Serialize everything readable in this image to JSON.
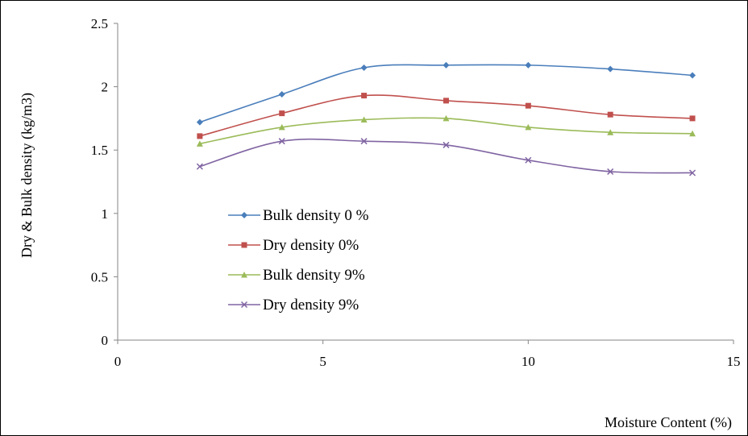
{
  "chart_data": {
    "type": "line",
    "title": "",
    "xlabel": "Moisture Content (%)",
    "ylabel": "Dry  & Bulk density (kg/m3)",
    "xlim": [
      0,
      15
    ],
    "ylim": [
      0,
      2.5
    ],
    "x_ticks": [
      "0",
      "5",
      "10",
      "15"
    ],
    "y_ticks": [
      "0",
      "0.5",
      "1",
      "1.5",
      "2",
      "2.5"
    ],
    "grid": false,
    "legend_position": "center-left",
    "smooth": true,
    "x": [
      2,
      4,
      6,
      8,
      10,
      12,
      14
    ],
    "series": [
      {
        "name": "Bulk density 0 %",
        "color": "#4a7ebb",
        "marker": "diamond",
        "values": [
          1.72,
          1.94,
          2.15,
          2.17,
          2.17,
          2.14,
          2.09
        ]
      },
      {
        "name": "Dry density 0%",
        "color": "#c0504d",
        "marker": "square",
        "values": [
          1.61,
          1.79,
          1.93,
          1.89,
          1.85,
          1.78,
          1.75
        ]
      },
      {
        "name": "Bulk density 9%",
        "color": "#9bbb59",
        "marker": "triangle",
        "values": [
          1.55,
          1.68,
          1.74,
          1.75,
          1.68,
          1.64,
          1.63
        ]
      },
      {
        "name": "Dry density 9%",
        "color": "#8064a2",
        "marker": "x",
        "values": [
          1.37,
          1.57,
          1.57,
          1.54,
          1.42,
          1.33,
          1.32
        ]
      }
    ]
  }
}
